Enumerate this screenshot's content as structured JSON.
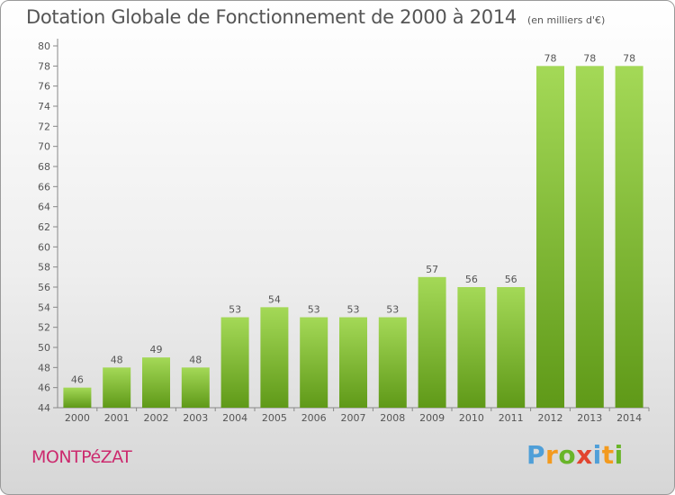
{
  "chart_data": {
    "type": "bar",
    "title": "Dotation Globale de Fonctionnement de 2000 à 2014",
    "unit": "(en milliers d'€)",
    "categories": [
      "2000",
      "2001",
      "2002",
      "2003",
      "2004",
      "2005",
      "2006",
      "2007",
      "2008",
      "2009",
      "2010",
      "2011",
      "2012",
      "2013",
      "2014"
    ],
    "values": [
      46,
      48,
      49,
      48,
      53,
      54,
      53,
      53,
      53,
      57,
      56,
      56,
      78,
      78,
      78
    ],
    "ylim": [
      44,
      80
    ],
    "ytick_step": 2,
    "grid": false,
    "colors": {
      "bar_light": "#a4d957",
      "bar_dark": "#5f9918",
      "text": "#555555",
      "axis": "#888888"
    }
  },
  "commune": "MONTPéZAT",
  "logo": {
    "letters": [
      "P",
      "r",
      "o",
      "x",
      "i",
      "t",
      "i"
    ],
    "colors": [
      "#4f9fd8",
      "#f39a1e",
      "#69b529",
      "#e2442f",
      "#4f9fd8",
      "#f39a1e",
      "#69b529"
    ]
  }
}
